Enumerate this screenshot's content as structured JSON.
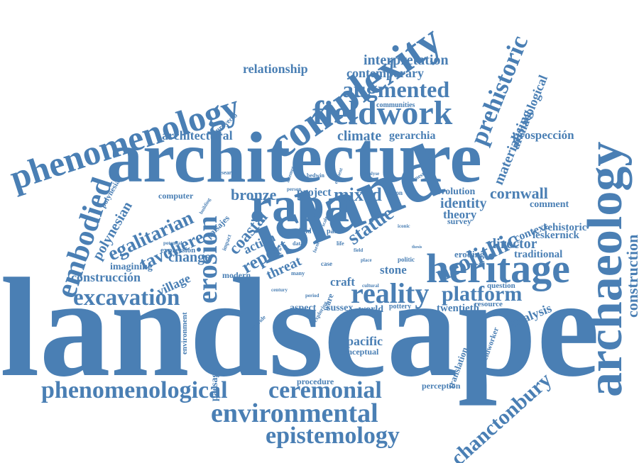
{
  "color": "#4a7fb4",
  "words": [
    "landscape",
    "architecture",
    "island",
    "archaeology",
    "heritage",
    "rapa",
    "complexity",
    "phenomenology",
    "fieldwork",
    "embodied",
    "erosion",
    "phenomenological",
    "ceremonial",
    "environmental",
    "epistemology",
    "excavation",
    "reality",
    "prehistoric",
    "augmented",
    "neolithic",
    "construction",
    "chanctonbury",
    "platform",
    "egalitarian",
    "statue",
    "bronze",
    "mixed",
    "cornwall",
    "tavoliere",
    "coastal",
    "report",
    "interpretation",
    "contemporary",
    "relationship",
    "materialising",
    "archaeological",
    "climate",
    "gerarchia",
    "prospección",
    "architectural",
    "identity",
    "director",
    "polynesian",
    "construcción",
    "change",
    "village",
    "analysis",
    "pacific",
    "craft",
    "stone",
    "theory",
    "context",
    "rehistoric",
    "leskernick",
    "traditional",
    "imagining",
    "twentieth",
    "world",
    "sussex",
    "aspect",
    "paesaggi",
    "translation",
    "procedure",
    "conceptual",
    "perception",
    "fieldworker",
    "resource",
    "question",
    "eroding",
    "evolution",
    "comment",
    "survey",
    "threat",
    "action",
    "modern",
    "expression",
    "paisajes",
    "computer",
    "polynesia",
    "environment",
    "proyecto",
    "communities",
    "research",
    "attempt",
    "element",
    "analyse",
    "domestic",
    "bedwin",
    "project",
    "wiston",
    "person",
    "scale",
    "past",
    "dead",
    "data",
    "life",
    "form",
    "article",
    "politic",
    "pottery",
    "ware",
    "exploring",
    "provide",
    "century",
    "period",
    "many",
    "case",
    "place",
    "potential",
    "building",
    "cultural",
    "iconic",
    "impact",
    "thesis",
    "field"
  ]
}
